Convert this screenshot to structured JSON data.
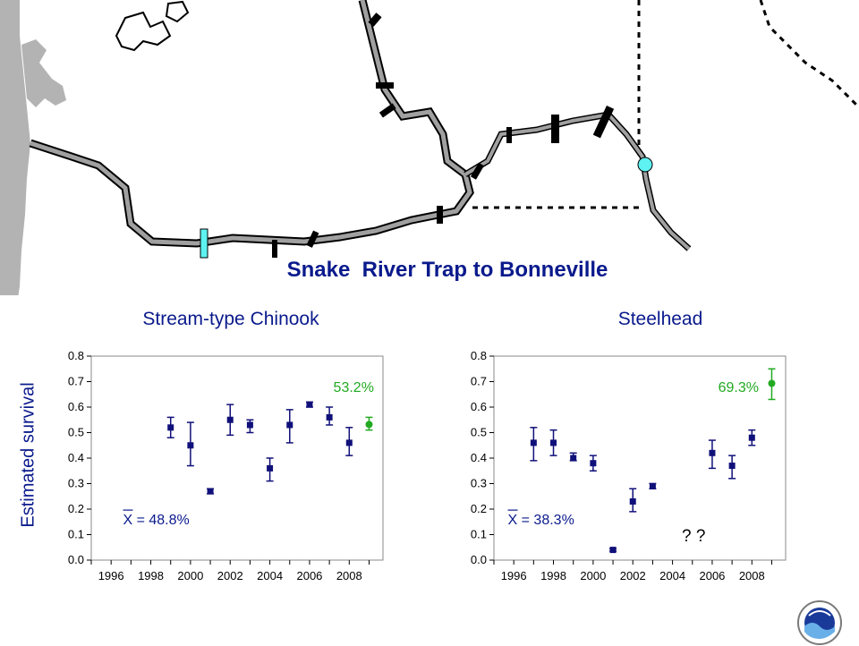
{
  "map": {
    "title": "Snake  River Trap to Bonneville",
    "trap_color": "#5ef2f2",
    "dam_color": "#000000",
    "river_fill": "#a0a0a0",
    "coast_fill": "#b3b3b3"
  },
  "y_axis_label": "Estimated survival",
  "chart_data": [
    {
      "type": "scatter",
      "title": "Stream-type Chinook",
      "ylabel": "Estimated survival",
      "ylim": [
        0,
        0.8
      ],
      "yticks": [
        "0.0",
        "0.1",
        "0.2",
        "0.3",
        "0.4",
        "0.5",
        "0.6",
        "0.7",
        "0.8"
      ],
      "xlim": [
        1995,
        2009.7
      ],
      "xticks": [
        "1996",
        "1998",
        "2000",
        "2002",
        "2004",
        "2006",
        "2008"
      ],
      "grid": false,
      "series": [
        {
          "color": "#10107a",
          "points": [
            {
              "x": 1999,
              "y": 0.52,
              "lo": 0.48,
              "hi": 0.56
            },
            {
              "x": 2000,
              "y": 0.45,
              "lo": 0.37,
              "hi": 0.54
            },
            {
              "x": 2001,
              "y": 0.27,
              "lo": 0.26,
              "hi": 0.28
            },
            {
              "x": 2002,
              "y": 0.55,
              "lo": 0.49,
              "hi": 0.61
            },
            {
              "x": 2003,
              "y": 0.53,
              "lo": 0.5,
              "hi": 0.55
            },
            {
              "x": 2004,
              "y": 0.36,
              "lo": 0.31,
              "hi": 0.4
            },
            {
              "x": 2005,
              "y": 0.53,
              "lo": 0.46,
              "hi": 0.59
            },
            {
              "x": 2006,
              "y": 0.61,
              "lo": 0.6,
              "hi": 0.62
            },
            {
              "x": 2007,
              "y": 0.56,
              "lo": 0.53,
              "hi": 0.6
            },
            {
              "x": 2008,
              "y": 0.46,
              "lo": 0.41,
              "hi": 0.52
            }
          ]
        },
        {
          "color": "#22aa22",
          "points": [
            {
              "x": 2009,
              "y": 0.532,
              "lo": 0.51,
              "hi": 0.56
            }
          ]
        }
      ],
      "annotations": [
        {
          "text": "53.2%",
          "color": "#22aa22",
          "x": 2007.2,
          "y": 0.66
        },
        {
          "text": "X = 48.8%",
          "color": "#0a1a8c",
          "x": 1996.6,
          "y": 0.14,
          "bar": true
        }
      ]
    },
    {
      "type": "scatter",
      "title": "Steelhead",
      "ylabel": "",
      "ylim": [
        0,
        0.8
      ],
      "yticks": [
        "0.0",
        "0.1",
        "0.2",
        "0.3",
        "0.4",
        "0.5",
        "0.6",
        "0.7",
        "0.8"
      ],
      "xlim": [
        1995,
        2009.7
      ],
      "xticks": [
        "1996",
        "1998",
        "2000",
        "2002",
        "2004",
        "2006",
        "2008"
      ],
      "grid": false,
      "series": [
        {
          "color": "#10107a",
          "points": [
            {
              "x": 1997,
              "y": 0.46,
              "lo": 0.39,
              "hi": 0.52
            },
            {
              "x": 1998,
              "y": 0.46,
              "lo": 0.41,
              "hi": 0.51
            },
            {
              "x": 1999,
              "y": 0.4,
              "lo": 0.39,
              "hi": 0.42
            },
            {
              "x": 2000,
              "y": 0.38,
              "lo": 0.35,
              "hi": 0.41
            },
            {
              "x": 2001,
              "y": 0.04,
              "lo": 0.035,
              "hi": 0.045
            },
            {
              "x": 2002,
              "y": 0.23,
              "lo": 0.19,
              "hi": 0.28
            },
            {
              "x": 2003,
              "y": 0.29,
              "lo": 0.28,
              "hi": 0.3
            },
            {
              "x": 2006,
              "y": 0.42,
              "lo": 0.36,
              "hi": 0.47
            },
            {
              "x": 2007,
              "y": 0.37,
              "lo": 0.32,
              "hi": 0.41
            },
            {
              "x": 2008,
              "y": 0.48,
              "lo": 0.45,
              "hi": 0.51
            }
          ]
        },
        {
          "color": "#22aa22",
          "points": [
            {
              "x": 2009,
              "y": 0.693,
              "lo": 0.63,
              "hi": 0.75
            }
          ]
        }
      ],
      "annotations": [
        {
          "text": "69.3%",
          "color": "#22aa22",
          "x": 2006.3,
          "y": 0.66
        },
        {
          "text": "X = 38.3%",
          "color": "#0a1a8c",
          "x": 1995.7,
          "y": 0.14,
          "bar": true
        }
      ]
    }
  ],
  "missing_marks": "? ?"
}
